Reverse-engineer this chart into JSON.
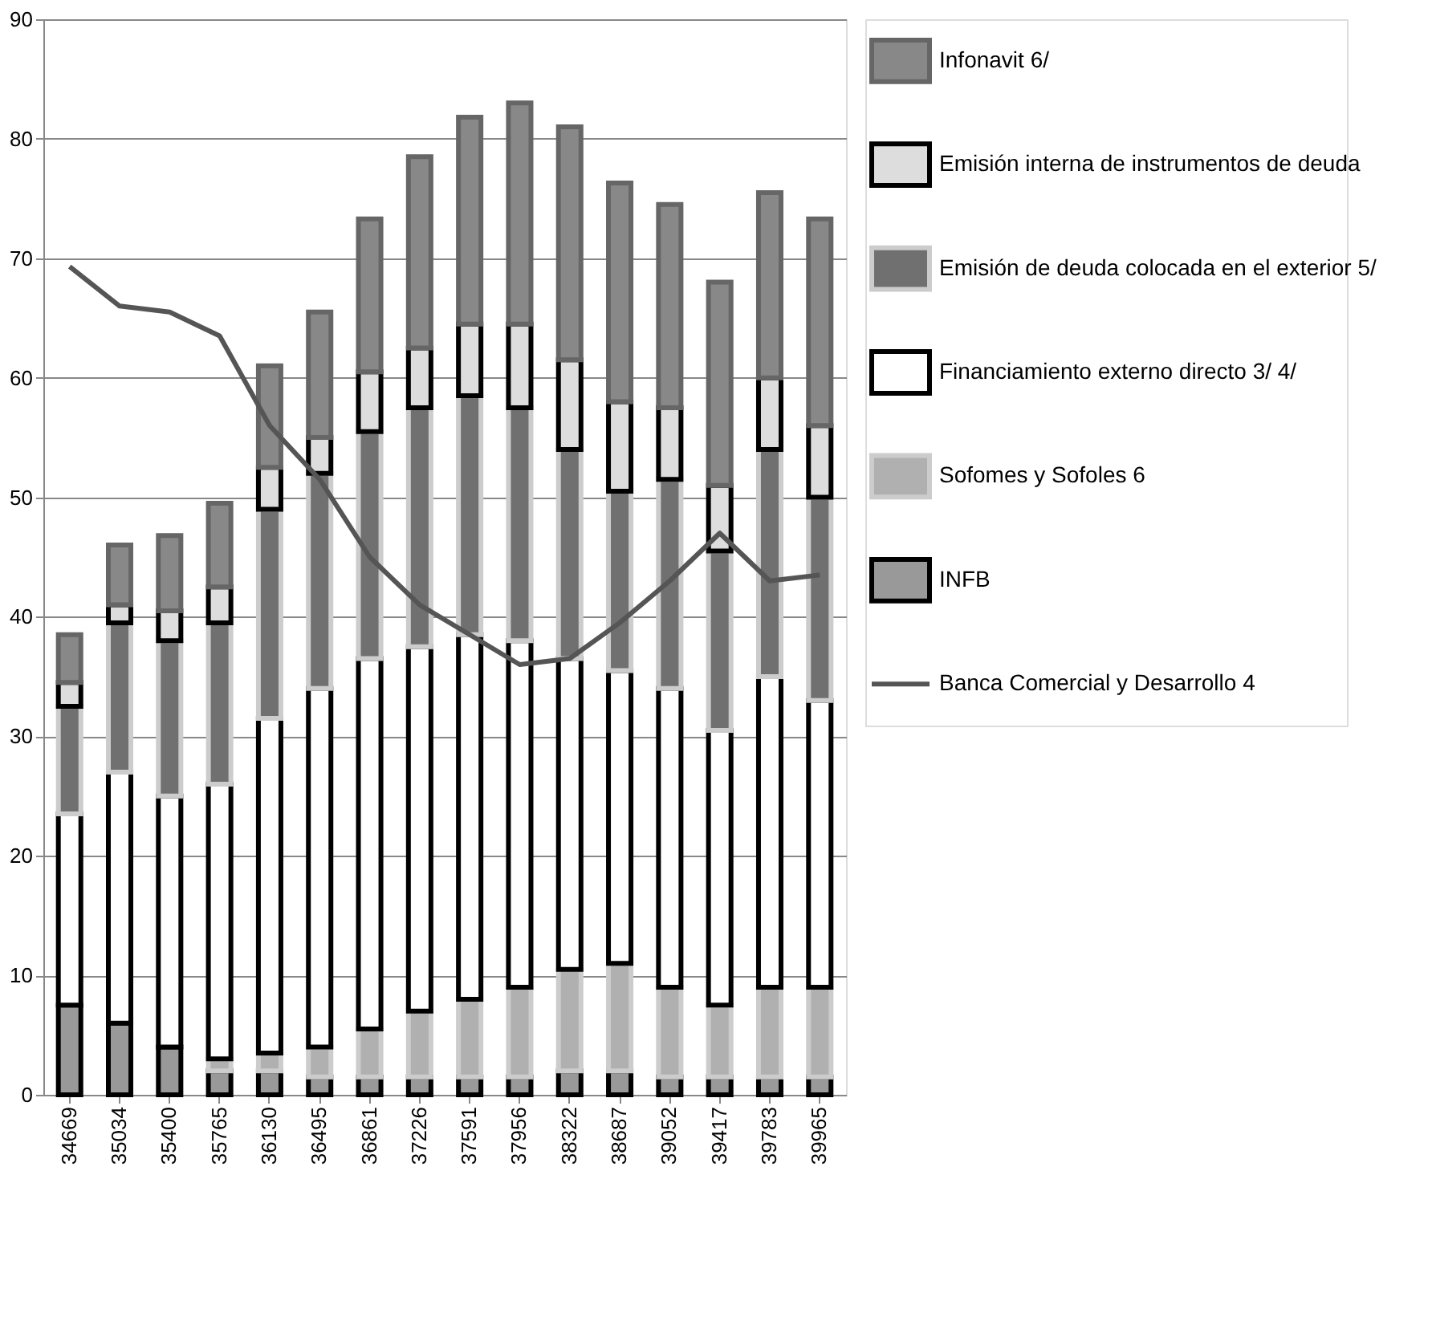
{
  "chart_data": {
    "type": "bar",
    "stacked": true,
    "categories": [
      "34669",
      "35034",
      "35400",
      "35765",
      "36130",
      "36495",
      "36861",
      "37226",
      "37591",
      "37956",
      "38322",
      "38687",
      "39052",
      "39417",
      "39783",
      "39965"
    ],
    "series": [
      {
        "name": "INFB",
        "color": "#999999",
        "values": [
          7.5,
          6,
          4,
          2,
          2,
          1.5,
          1.5,
          1.5,
          1.5,
          1.5,
          2,
          2,
          1.5,
          1.5,
          1.5,
          1.5
        ]
      },
      {
        "name": "Sofomes y Sofoles 6",
        "color": "#b0b0b0",
        "values": [
          null,
          null,
          null,
          1,
          1.5,
          2.5,
          4,
          5.5,
          6.5,
          7.5,
          8.5,
          9,
          7.5,
          6,
          7.5,
          7.5
        ]
      },
      {
        "name": "Financiamiento externo directo 3/ 4/",
        "color": "#ffffff",
        "values": [
          16,
          21,
          21,
          23,
          28,
          30,
          31,
          30.5,
          30.5,
          29,
          26,
          24.5,
          25,
          23,
          26,
          24
        ]
      },
      {
        "name": "Emisión de deuda colocada en el exterior 5/",
        "color": "#707070",
        "values": [
          9,
          12.5,
          13,
          13.5,
          17.5,
          18,
          19,
          20,
          20,
          19.5,
          17.5,
          15,
          17.5,
          15,
          19,
          17
        ]
      },
      {
        "name": "Emisión interna de instrumentos de deuda",
        "color": "#dddddd",
        "values": [
          2,
          1.5,
          2.5,
          3,
          3.5,
          3,
          5,
          5,
          6,
          7,
          7.5,
          7.5,
          6,
          5.5,
          6,
          6
        ]
      },
      {
        "name": "Infonavit 6/",
        "color": "#888888",
        "values": [
          4,
          5,
          6.3,
          7,
          8.5,
          10.5,
          12.8,
          16,
          17.3,
          18.5,
          19.5,
          18.3,
          17,
          17,
          15.5,
          17.3
        ]
      },
      {
        "name": "Banca Comercial y Desarrollo 4",
        "type": "line",
        "color": "#555555",
        "values": [
          69.3,
          66,
          65.5,
          63.5,
          56,
          51.5,
          45,
          41,
          38.5,
          36,
          36.5,
          39.5,
          43,
          47,
          43,
          43.5
        ]
      }
    ],
    "ylim": [
      0,
      90
    ],
    "yticks": [
      0,
      10,
      20,
      30,
      40,
      50,
      60,
      70,
      80,
      90
    ],
    "grid": "y",
    "legend": "right"
  }
}
